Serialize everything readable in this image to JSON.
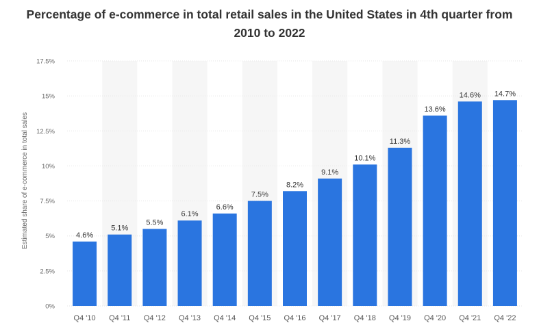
{
  "chart_data": {
    "type": "bar",
    "title_line1": "Percentage of e-commerce in total retail sales in the United States in 4th quarter from",
    "title_line2": "2010 to 2022",
    "xlabel": "",
    "ylabel": "Estimated share of e-commerce in total sales",
    "categories": [
      "Q4 '10",
      "Q4 '11",
      "Q4 '12",
      "Q4 '13",
      "Q4 '14",
      "Q4 '15",
      "Q4 '16",
      "Q4 '17",
      "Q4 '18",
      "Q4 '19",
      "Q4 '20",
      "Q4 '21",
      "Q4 '22"
    ],
    "values": [
      4.6,
      5.1,
      5.5,
      6.1,
      6.6,
      7.5,
      8.2,
      9.1,
      10.1,
      11.3,
      13.6,
      14.6,
      14.7
    ],
    "value_labels": [
      "4.6%",
      "5.1%",
      "5.5%",
      "6.1%",
      "6.6%",
      "7.5%",
      "8.2%",
      "9.1%",
      "10.1%",
      "11.3%",
      "13.6%",
      "14.6%",
      "14.7%"
    ],
    "ylim": [
      0,
      17.5
    ],
    "yticks": [
      0,
      2.5,
      5,
      7.5,
      10,
      12.5,
      15,
      17.5
    ],
    "ytick_labels": [
      "0%",
      "2.5%",
      "5%",
      "7.5%",
      "10%",
      "12.5%",
      "15%",
      "17.5%"
    ],
    "grid": true,
    "bar_color": "#2a75e0",
    "alt_band_color": "#f6f6f6"
  }
}
